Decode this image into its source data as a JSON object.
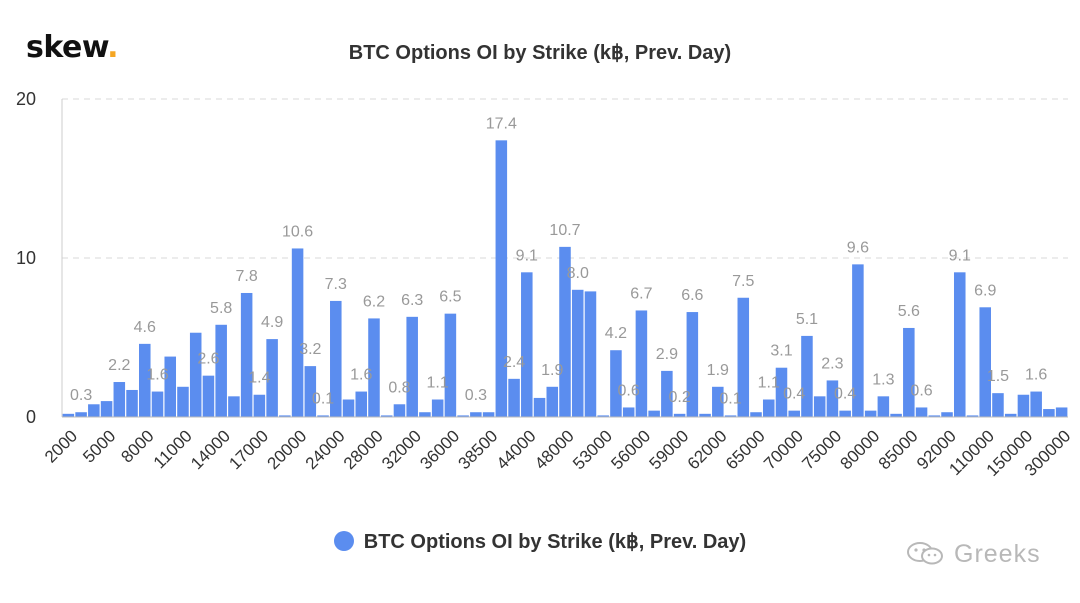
{
  "brand": {
    "name": "skew",
    "dot": "."
  },
  "chart_data": {
    "type": "bar",
    "title": "BTC Options OI by Strike (k฿, Prev. Day)",
    "xlabel": "",
    "ylabel": "",
    "ylim": [
      0,
      20
    ],
    "yticks": [
      0,
      10,
      20
    ],
    "grid": true,
    "legend_position": "bottom",
    "x_tick_labels": [
      "2000",
      "5000",
      "8000",
      "11000",
      "14000",
      "17000",
      "20000",
      "24000",
      "28000",
      "32000",
      "36000",
      "38500",
      "44000",
      "48000",
      "53000",
      "56000",
      "59000",
      "62000",
      "65000",
      "70000",
      "75000",
      "80000",
      "85000",
      "92000",
      "110000",
      "150000",
      "300000"
    ],
    "series": [
      {
        "name": "BTC Options OI by Strike (k฿, Prev. Day)",
        "color": "#5b8def",
        "values": [
          0.2,
          0.3,
          0.8,
          1.0,
          2.2,
          1.7,
          4.6,
          1.6,
          3.8,
          1.9,
          5.3,
          2.6,
          5.8,
          1.3,
          7.8,
          1.4,
          4.9,
          0.1,
          10.6,
          3.2,
          0.1,
          7.3,
          1.1,
          1.6,
          6.2,
          0.1,
          0.8,
          6.3,
          0.3,
          1.1,
          6.5,
          0.1,
          0.3,
          0.3,
          17.4,
          2.4,
          9.1,
          1.2,
          1.9,
          10.7,
          8.0,
          7.9,
          0.1,
          4.2,
          0.6,
          6.7,
          0.4,
          2.9,
          0.2,
          6.6,
          0.2,
          1.9,
          0.1,
          7.5,
          0.3,
          1.1,
          3.1,
          0.4,
          5.1,
          1.3,
          2.3,
          0.4,
          9.6,
          0.4,
          1.3,
          0.2,
          5.6,
          0.6,
          0.1,
          0.3,
          9.1,
          0.1,
          6.9,
          1.5,
          0.2,
          1.4,
          1.6,
          0.5,
          0.6
        ],
        "data_labels": [
          "",
          "0.3",
          "",
          "",
          "2.2",
          "",
          "4.6",
          "1.6",
          "",
          "",
          "",
          "2.6",
          "5.8",
          "",
          "7.8",
          "1.4",
          "4.9",
          "",
          "10.6",
          "3.2",
          "0.1",
          "7.3",
          "",
          "1.6",
          "6.2",
          "",
          "0.8",
          "6.3",
          "",
          "1.1",
          "6.5",
          "",
          "0.3",
          "",
          "17.4",
          "2.4",
          "9.1",
          "",
          "1.9",
          "10.7",
          "8.0",
          "",
          "",
          "4.2",
          "0.6",
          "6.7",
          "",
          "2.9",
          "0.2",
          "6.6",
          "",
          "1.9",
          "0.1",
          "7.5",
          "",
          "1.1",
          "3.1",
          "0.4",
          "5.1",
          "",
          "2.3",
          "0.4",
          "9.6",
          "",
          "1.3",
          "",
          "5.6",
          "0.6",
          "",
          "",
          "9.1",
          "",
          "6.9",
          "1.5",
          "",
          "",
          "1.6",
          "",
          ""
        ]
      }
    ]
  },
  "legend": {
    "label": "BTC Options OI by Strike (k฿, Prev. Day)"
  },
  "watermark": {
    "text": "Greeks",
    "icon": "wechat-icon"
  },
  "colors": {
    "bar": "#5b8def",
    "grid": "#d9d9d9",
    "axis_text": "#333333",
    "data_label": "#999999"
  }
}
